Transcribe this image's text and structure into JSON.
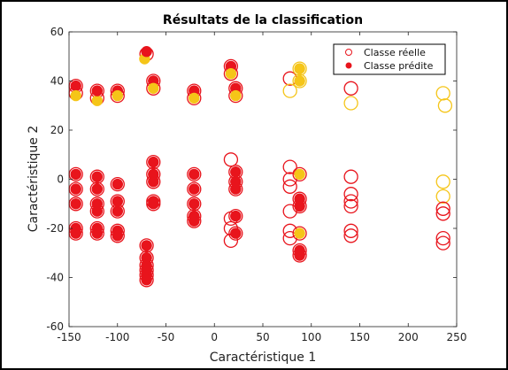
{
  "chart_data": {
    "type": "scatter",
    "title": "Résultats de la classification",
    "xlabel": "Caractéristique 1",
    "ylabel": "Caractéristique 2",
    "xlim": [
      -150,
      250
    ],
    "ylim": [
      -60,
      60
    ],
    "xticks": [
      -150,
      -100,
      -50,
      0,
      50,
      100,
      150,
      200,
      250
    ],
    "yticks": [
      -60,
      -40,
      -20,
      0,
      20,
      40,
      60
    ],
    "grid": false,
    "legend_position": "top-right",
    "colors": {
      "red": "#e8141c",
      "yellow": "#f5c518"
    },
    "legend": [
      {
        "label": "Classe réelle",
        "marker": "open-circle",
        "color": "#e8141c"
      },
      {
        "label": "Classe prédite",
        "marker": "filled-circle",
        "color": "#e8141c"
      }
    ],
    "series": [
      {
        "marker": "open-circle",
        "points": [
          [
            -143,
            38,
            "red"
          ],
          [
            -143,
            35,
            "red"
          ],
          [
            -121,
            33,
            "red"
          ],
          [
            -121,
            36,
            "red"
          ],
          [
            -100,
            36,
            "red"
          ],
          [
            -100,
            34,
            "red"
          ],
          [
            -70,
            51,
            "red"
          ],
          [
            -63,
            40,
            "red"
          ],
          [
            -63,
            37,
            "red"
          ],
          [
            -21,
            36,
            "red"
          ],
          [
            -21,
            33,
            "red"
          ],
          [
            17,
            46,
            "red"
          ],
          [
            17,
            43,
            "red"
          ],
          [
            22,
            37,
            "red"
          ],
          [
            22,
            34,
            "red"
          ],
          [
            78,
            41,
            "red"
          ],
          [
            78,
            36,
            "yellow"
          ],
          [
            88,
            45,
            "yellow"
          ],
          [
            88,
            40,
            "yellow"
          ],
          [
            141,
            37,
            "red"
          ],
          [
            141,
            31,
            "yellow"
          ],
          [
            236,
            35,
            "yellow"
          ],
          [
            238,
            30,
            "yellow"
          ],
          [
            -143,
            2,
            "red"
          ],
          [
            -143,
            -4,
            "red"
          ],
          [
            -143,
            -10,
            "red"
          ],
          [
            -143,
            -20,
            "red"
          ],
          [
            -143,
            -22,
            "red"
          ],
          [
            -121,
            1,
            "red"
          ],
          [
            -121,
            -4,
            "red"
          ],
          [
            -121,
            -10,
            "red"
          ],
          [
            -121,
            -13,
            "red"
          ],
          [
            -121,
            -20,
            "red"
          ],
          [
            -121,
            -22,
            "red"
          ],
          [
            -100,
            -2,
            "red"
          ],
          [
            -100,
            -9,
            "red"
          ],
          [
            -100,
            -13,
            "red"
          ],
          [
            -100,
            -21,
            "red"
          ],
          [
            -100,
            -23,
            "red"
          ],
          [
            -63,
            7,
            "red"
          ],
          [
            -63,
            2,
            "red"
          ],
          [
            -63,
            -1,
            "red"
          ],
          [
            -63,
            -9,
            "red"
          ],
          [
            -63,
            -10,
            "red"
          ],
          [
            -21,
            2,
            "red"
          ],
          [
            -21,
            -4,
            "red"
          ],
          [
            -21,
            -10,
            "red"
          ],
          [
            -21,
            -15,
            "red"
          ],
          [
            -21,
            -17,
            "red"
          ],
          [
            17,
            8,
            "red"
          ],
          [
            17,
            -16,
            "red"
          ],
          [
            17,
            -20,
            "red"
          ],
          [
            17,
            -25,
            "red"
          ],
          [
            22,
            3,
            "red"
          ],
          [
            22,
            -1,
            "red"
          ],
          [
            22,
            -4,
            "red"
          ],
          [
            22,
            -15,
            "red"
          ],
          [
            22,
            -22,
            "red"
          ],
          [
            78,
            5,
            "red"
          ],
          [
            78,
            0,
            "red"
          ],
          [
            78,
            -3,
            "red"
          ],
          [
            78,
            -13,
            "red"
          ],
          [
            78,
            -21,
            "red"
          ],
          [
            78,
            -24,
            "red"
          ],
          [
            88,
            2,
            "red"
          ],
          [
            88,
            -8,
            "red"
          ],
          [
            88,
            -11,
            "red"
          ],
          [
            88,
            -22,
            "red"
          ],
          [
            88,
            -29,
            "red"
          ],
          [
            88,
            -31,
            "red"
          ],
          [
            141,
            1,
            "red"
          ],
          [
            141,
            -6,
            "red"
          ],
          [
            141,
            -9,
            "red"
          ],
          [
            141,
            -11,
            "red"
          ],
          [
            141,
            -21,
            "red"
          ],
          [
            141,
            -23,
            "red"
          ],
          [
            236,
            -1,
            "yellow"
          ],
          [
            236,
            -7,
            "yellow"
          ],
          [
            236,
            -12,
            "red"
          ],
          [
            236,
            -14,
            "red"
          ],
          [
            236,
            -24,
            "red"
          ],
          [
            236,
            -26,
            "red"
          ],
          [
            -70,
            -27,
            "red"
          ],
          [
            -70,
            -32,
            "red"
          ],
          [
            -70,
            -35,
            "red"
          ],
          [
            -70,
            -37,
            "red"
          ],
          [
            -70,
            -39,
            "red"
          ],
          [
            -70,
            -41,
            "red"
          ]
        ]
      },
      {
        "marker": "filled-circle",
        "points": [
          [
            -143,
            38,
            "red"
          ],
          [
            -143,
            34,
            "yellow"
          ],
          [
            -121,
            32,
            "yellow"
          ],
          [
            -121,
            36,
            "red"
          ],
          [
            -100,
            36,
            "red"
          ],
          [
            -100,
            34,
            "yellow"
          ],
          [
            -72,
            49,
            "yellow"
          ],
          [
            -70,
            52,
            "red"
          ],
          [
            -63,
            40,
            "red"
          ],
          [
            -63,
            37,
            "yellow"
          ],
          [
            -21,
            36,
            "red"
          ],
          [
            -21,
            33,
            "yellow"
          ],
          [
            17,
            46,
            "red"
          ],
          [
            17,
            43,
            "yellow"
          ],
          [
            22,
            37,
            "red"
          ],
          [
            22,
            34,
            "yellow"
          ],
          [
            88,
            45,
            "yellow"
          ],
          [
            88,
            40,
            "yellow"
          ],
          [
            -143,
            2,
            "red"
          ],
          [
            -143,
            -4,
            "red"
          ],
          [
            -143,
            -10,
            "red"
          ],
          [
            -143,
            -20,
            "red"
          ],
          [
            -143,
            -22,
            "red"
          ],
          [
            -121,
            1,
            "red"
          ],
          [
            -121,
            -4,
            "red"
          ],
          [
            -121,
            -10,
            "red"
          ],
          [
            -121,
            -13,
            "red"
          ],
          [
            -121,
            -20,
            "red"
          ],
          [
            -121,
            -22,
            "red"
          ],
          [
            -100,
            -2,
            "red"
          ],
          [
            -100,
            -9,
            "red"
          ],
          [
            -100,
            -13,
            "red"
          ],
          [
            -100,
            -21,
            "red"
          ],
          [
            -100,
            -23,
            "red"
          ],
          [
            -63,
            7,
            "red"
          ],
          [
            -63,
            2,
            "red"
          ],
          [
            -63,
            -1,
            "red"
          ],
          [
            -63,
            -9,
            "red"
          ],
          [
            -63,
            -10,
            "red"
          ],
          [
            -21,
            2,
            "red"
          ],
          [
            -21,
            -4,
            "red"
          ],
          [
            -21,
            -10,
            "red"
          ],
          [
            -21,
            -15,
            "red"
          ],
          [
            -21,
            -17,
            "red"
          ],
          [
            22,
            3,
            "red"
          ],
          [
            22,
            -1,
            "red"
          ],
          [
            22,
            -4,
            "red"
          ],
          [
            22,
            -15,
            "red"
          ],
          [
            22,
            -22,
            "red"
          ],
          [
            88,
            2,
            "yellow"
          ],
          [
            88,
            -8,
            "red"
          ],
          [
            88,
            -11,
            "red"
          ],
          [
            88,
            -22,
            "yellow"
          ],
          [
            88,
            -29,
            "red"
          ],
          [
            88,
            -31,
            "red"
          ],
          [
            -70,
            -27,
            "red"
          ],
          [
            -70,
            -32,
            "red"
          ],
          [
            -70,
            -35,
            "red"
          ],
          [
            -70,
            -37,
            "red"
          ],
          [
            -70,
            -39,
            "red"
          ],
          [
            -70,
            -41,
            "red"
          ]
        ]
      }
    ]
  }
}
